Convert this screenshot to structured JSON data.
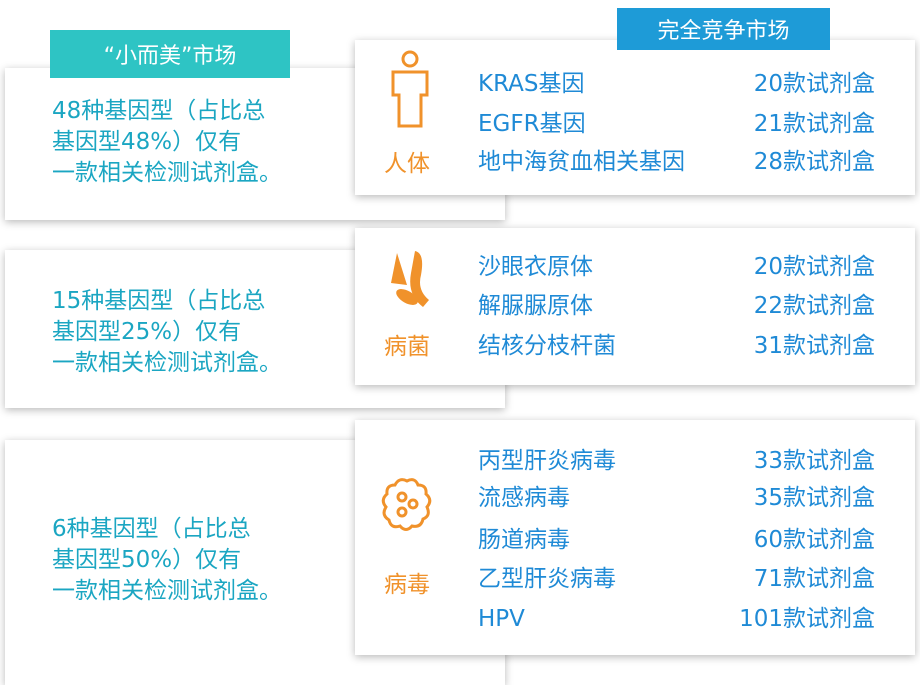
{
  "small_market": {
    "label": "“小而美”市场",
    "groups": [
      {
        "lines": [
          "48种基因型（占比总",
          "基因型48%）仅有",
          "一款相关检测试剂盒。"
        ]
      },
      {
        "lines": [
          "15种基因型（占比总",
          "基因型25%）仅有",
          "一款相关检测试剂盒。"
        ]
      },
      {
        "lines": [
          "6种基因型（占比总",
          "基因型50%）仅有",
          "一款相关检测试剂盒。"
        ]
      }
    ]
  },
  "competitive_market": {
    "label": "完全竞争市场",
    "groups": [
      {
        "category": "人体",
        "items": [
          {
            "name": "KRAS基因",
            "count": "20款试剂盒"
          },
          {
            "name": "EGFR基因",
            "count": "21款试剂盒"
          },
          {
            "name": "地中海贫血相关基因",
            "count": "28款试剂盒"
          }
        ]
      },
      {
        "category": "病菌",
        "items": [
          {
            "name": "沙眼衣原体",
            "count": "20款试剂盒"
          },
          {
            "name": "解脲脲原体",
            "count": "22款试剂盒"
          },
          {
            "name": "结核分枝杆菌",
            "count": "31款试剂盒"
          }
        ]
      },
      {
        "category": "病毒",
        "items": [
          {
            "name": "丙型肝炎病毒",
            "count": "33款试剂盒"
          },
          {
            "name": "流感病毒",
            "count": "35款试剂盒"
          },
          {
            "name": "肠道病毒",
            "count": "60款试剂盒"
          },
          {
            "name": "乙型肝炎病毒",
            "count": "71款试剂盒"
          },
          {
            "name": "HPV",
            "count": "101款试剂盒"
          }
        ]
      }
    ]
  }
}
